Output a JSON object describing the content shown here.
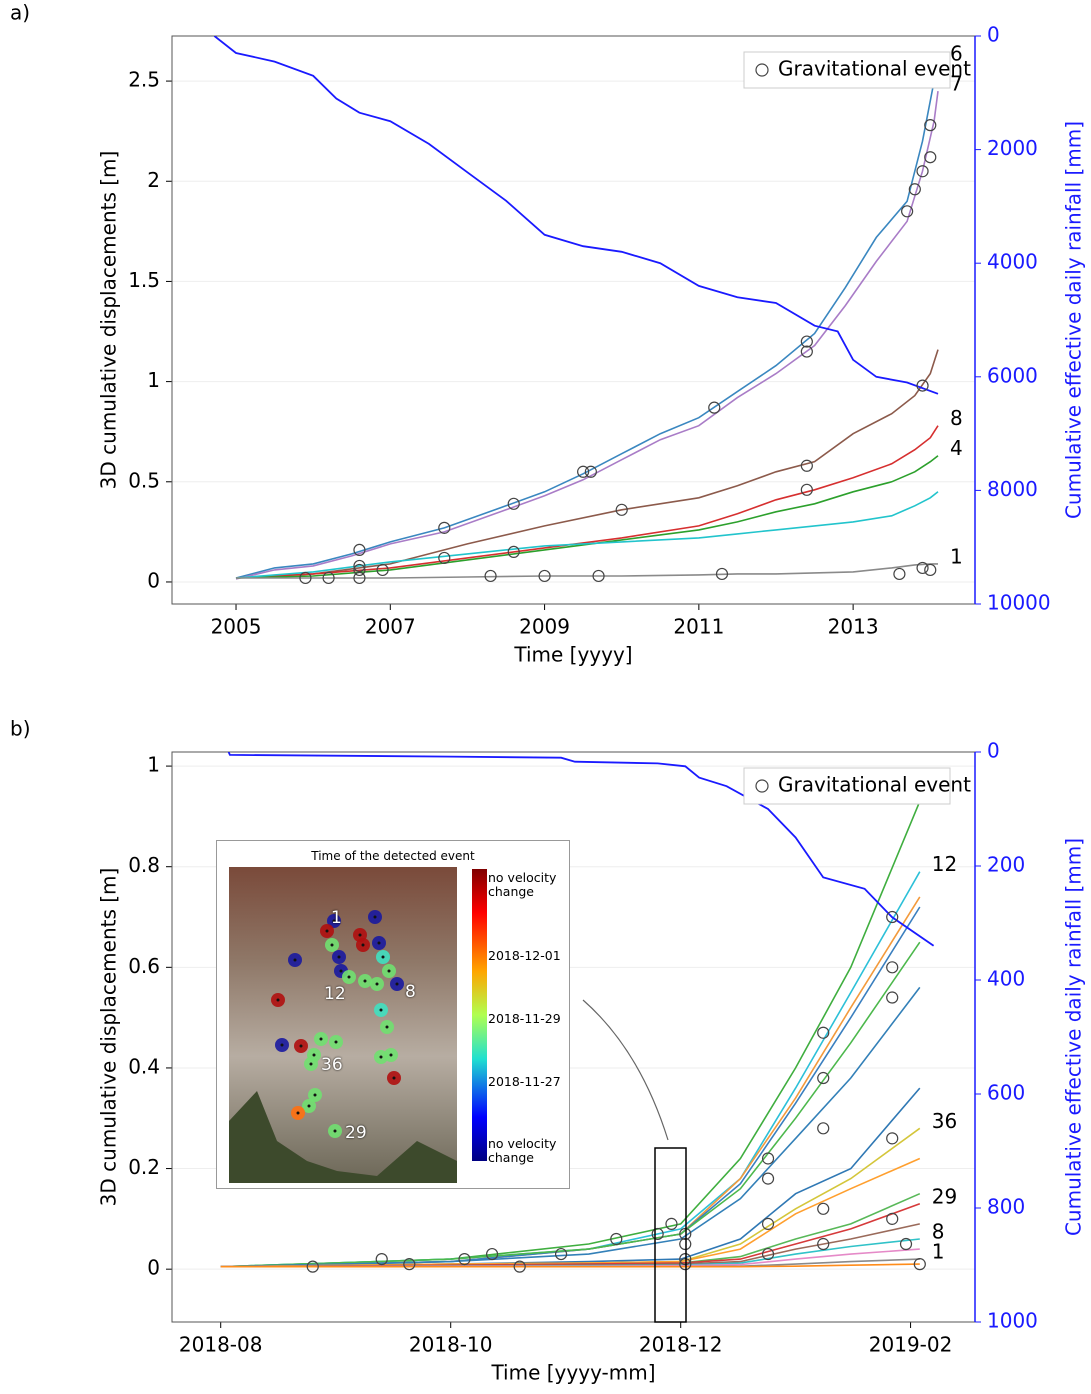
{
  "chart_data": [
    {
      "type": "line",
      "panel_label": "a)",
      "xlabel": "Time [yyyy]",
      "ylabel": "3D cumulative displacements [m]",
      "y2label": "Cumulative effective daily rainfall [mm]",
      "xlim": [
        2004.17,
        2014.58
      ],
      "xticks": [
        2005,
        2007,
        2009,
        2011,
        2013
      ],
      "ylim": [
        -0.11,
        2.725
      ],
      "yticks": [
        0,
        0.5,
        1,
        1.5,
        2,
        2.5
      ],
      "y2lim": [
        10000,
        0
      ],
      "y2ticks": [
        0,
        2000,
        4000,
        6000,
        8000,
        10000
      ],
      "grid": true,
      "legend": "upper right",
      "x": [
        2005,
        2006,
        2007,
        2008,
        2009,
        2010,
        2011,
        2011.5,
        2012,
        2012.5,
        2013,
        2013.5,
        2013.8,
        2014,
        2014.1
      ],
      "series": [
        {
          "name": "6",
          "color": "#3a87c0",
          "x": [
            2005,
            2005.5,
            2006,
            2006.5,
            2007,
            2007.7,
            2008.5,
            2009,
            2009.5,
            2010,
            2010.5,
            2011,
            2011.5,
            2012,
            2012.5,
            2012.9,
            2013.3,
            2013.7,
            2013.9,
            2014.05,
            2014.1
          ],
          "values": [
            0.02,
            0.07,
            0.09,
            0.14,
            0.2,
            0.27,
            0.38,
            0.45,
            0.54,
            0.64,
            0.74,
            0.82,
            0.95,
            1.08,
            1.24,
            1.47,
            1.72,
            1.9,
            2.2,
            2.5,
            2.6
          ]
        },
        {
          "name": "7",
          "color": "#a97cc7",
          "x": [
            2005,
            2005.5,
            2006,
            2006.5,
            2007,
            2007.7,
            2008.5,
            2009,
            2009.5,
            2010,
            2010.5,
            2011,
            2011.5,
            2012,
            2012.5,
            2012.9,
            2013.3,
            2013.7,
            2013.9,
            2014.05,
            2014.1
          ],
          "values": [
            0.015,
            0.06,
            0.08,
            0.13,
            0.19,
            0.25,
            0.36,
            0.43,
            0.51,
            0.61,
            0.71,
            0.78,
            0.92,
            1.04,
            1.18,
            1.38,
            1.6,
            1.8,
            2.05,
            2.3,
            2.45
          ]
        },
        {
          "color": "#8c5a4b",
          "values": [
            0.02,
            0.04,
            0.09,
            0.19,
            0.28,
            0.36,
            0.42,
            0.48,
            0.55,
            0.6,
            0.74,
            0.84,
            0.93,
            1.04,
            1.16
          ]
        },
        {
          "name": "8",
          "color": "#d62f2f",
          "values": [
            0.02,
            0.04,
            0.07,
            0.12,
            0.17,
            0.22,
            0.28,
            0.34,
            0.41,
            0.46,
            0.52,
            0.59,
            0.66,
            0.72,
            0.78
          ]
        },
        {
          "name": "4",
          "color": "#2ca02c",
          "values": [
            0.02,
            0.03,
            0.06,
            0.11,
            0.16,
            0.21,
            0.26,
            0.3,
            0.35,
            0.39,
            0.45,
            0.5,
            0.55,
            0.6,
            0.63
          ]
        },
        {
          "color": "#22c4cc",
          "values": [
            0.02,
            0.05,
            0.1,
            0.14,
            0.18,
            0.2,
            0.22,
            0.24,
            0.26,
            0.28,
            0.3,
            0.33,
            0.38,
            0.42,
            0.45
          ]
        },
        {
          "name": "1",
          "color": "#8a8a8a",
          "values": [
            0.02,
            0.02,
            0.02,
            0.025,
            0.03,
            0.03,
            0.035,
            0.04,
            0.04,
            0.045,
            0.05,
            0.07,
            0.085,
            0.09,
            0.09
          ]
        },
        {
          "axis": "y2",
          "color": "#1a1aff",
          "x": [
            2004.72,
            2005,
            2005.5,
            2006,
            2006.3,
            2006.6,
            2007,
            2007.5,
            2008,
            2008.5,
            2009,
            2009.5,
            2010,
            2010.5,
            2011,
            2011.5,
            2012,
            2012.5,
            2012.8,
            2013,
            2013.3,
            2013.7,
            2014.1
          ],
          "values": [
            0,
            300,
            450,
            700,
            1100,
            1350,
            1500,
            1900,
            2400,
            2900,
            3500,
            3700,
            3800,
            4000,
            4400,
            4600,
            4700,
            5100,
            5200,
            5700,
            6000,
            6100,
            6300
          ]
        },
        {
          "name": "Gravitational event",
          "marker": "circle",
          "color": "#444444",
          "x": [
            2005.9,
            2006.2,
            2006.6,
            2006.6,
            2006.6,
            2006.6,
            2006.9,
            2007.7,
            2007.7,
            2008.3,
            2008.6,
            2008.6,
            2009.0,
            2009.5,
            2009.6,
            2009.7,
            2010.0,
            2011.2,
            2011.3,
            2012.4,
            2012.4,
            2012.4,
            2012.4,
            2013.6,
            2013.7,
            2013.8,
            2013.9,
            2013.9,
            2014.0,
            2014.0,
            2013.9,
            2014.0
          ],
          "values": [
            0.02,
            0.02,
            0.02,
            0.08,
            0.06,
            0.16,
            0.06,
            0.27,
            0.12,
            0.03,
            0.39,
            0.15,
            0.03,
            0.55,
            0.55,
            0.03,
            0.36,
            0.87,
            0.04,
            1.2,
            1.15,
            0.58,
            0.46,
            0.04,
            1.85,
            1.96,
            0.98,
            2.05,
            2.28,
            2.12,
            0.07,
            0.06
          ]
        }
      ]
    },
    {
      "type": "line",
      "panel_label": "b)",
      "xlabel": "Time [yyyy-mm]",
      "ylabel": "3D cumulative displacements [m]",
      "y2label": "Cumulative effective daily rainfall [mm]",
      "xlim": [
        2018.548,
        2019.13
      ],
      "xticks": [
        {
          "value": 2018.5833,
          "label": "2018-08"
        },
        {
          "value": 2018.75,
          "label": "2018-10"
        },
        {
          "value": 2018.9167,
          "label": "2018-12"
        },
        {
          "value": 2019.0833,
          "label": "2019-02"
        }
      ],
      "ylim": [
        -0.105,
        1.028
      ],
      "yticks": [
        0,
        0.2,
        0.4,
        0.6,
        0.8,
        1
      ],
      "y2lim": [
        1000,
        0
      ],
      "y2ticks": [
        0,
        200,
        400,
        600,
        800,
        1000
      ],
      "grid": true,
      "legend": "upper right",
      "x": [
        2018.5833,
        2018.75,
        2018.85,
        2018.9167,
        2018.96,
        2019.0,
        2019.04,
        2019.09
      ],
      "series": [
        {
          "color": "#3fae3f",
          "values": [
            0.005,
            0.02,
            0.05,
            0.09,
            0.22,
            0.4,
            0.6,
            0.93
          ]
        },
        {
          "name": "12",
          "color": "#2cc0d8",
          "values": [
            0.005,
            0.02,
            0.04,
            0.08,
            0.18,
            0.36,
            0.55,
            0.79
          ]
        },
        {
          "color": "#f39a3c",
          "values": [
            0.005,
            0.015,
            0.04,
            0.07,
            0.18,
            0.34,
            0.52,
            0.74
          ]
        },
        {
          "color": "#3a7fbf",
          "values": [
            0.005,
            0.015,
            0.04,
            0.07,
            0.17,
            0.33,
            0.5,
            0.72
          ]
        },
        {
          "color": "#4cb84c",
          "values": [
            0.005,
            0.02,
            0.04,
            0.07,
            0.16,
            0.3,
            0.45,
            0.65
          ]
        },
        {
          "color": "#3380b8",
          "values": [
            0.005,
            0.015,
            0.03,
            0.06,
            0.14,
            0.26,
            0.38,
            0.56
          ]
        },
        {
          "color": "#2f78b4",
          "values": [
            0.005,
            0.01,
            0.015,
            0.02,
            0.06,
            0.15,
            0.2,
            0.36
          ]
        },
        {
          "name": "36",
          "color": "#d4c63a",
          "values": [
            0.005,
            0.01,
            0.012,
            0.015,
            0.05,
            0.12,
            0.18,
            0.28
          ]
        },
        {
          "color": "#ff9f2e",
          "values": [
            0.005,
            0.01,
            0.012,
            0.015,
            0.04,
            0.11,
            0.16,
            0.22
          ]
        },
        {
          "color": "#58b858",
          "values": [
            0.005,
            0.008,
            0.01,
            0.012,
            0.025,
            0.06,
            0.09,
            0.15
          ]
        },
        {
          "name": "29",
          "color": "#d63a3a",
          "values": [
            0.005,
            0.008,
            0.01,
            0.012,
            0.02,
            0.05,
            0.08,
            0.13
          ]
        },
        {
          "color": "#9a6a5a",
          "values": [
            0.005,
            0.007,
            0.008,
            0.01,
            0.015,
            0.04,
            0.06,
            0.09
          ]
        },
        {
          "name": "8",
          "color": "#30c2c8",
          "values": [
            0.005,
            0.006,
            0.007,
            0.008,
            0.012,
            0.03,
            0.045,
            0.06
          ]
        },
        {
          "color": "#e58ac8",
          "values": [
            0.005,
            0.006,
            0.006,
            0.007,
            0.009,
            0.02,
            0.03,
            0.04
          ]
        },
        {
          "name": "1",
          "color": "#8a8a8a",
          "values": [
            0.005,
            0.005,
            0.005,
            0.005,
            0.006,
            0.01,
            0.015,
            0.02
          ]
        },
        {
          "color": "#ff8c1a",
          "values": [
            0.005,
            0.005,
            0.005,
            0.005,
            0.005,
            0.006,
            0.008,
            0.01
          ]
        },
        {
          "axis": "y2",
          "color": "#1a1aff",
          "x": [
            2018.589,
            2018.59,
            2018.75,
            2018.83,
            2018.84,
            2018.9,
            2018.92,
            2018.93,
            2018.95,
            2018.98,
            2019.0,
            2019.02,
            2019.05,
            2019.07,
            2019.1
          ],
          "values": [
            0,
            5,
            8,
            10,
            17,
            20,
            25,
            45,
            60,
            100,
            150,
            220,
            240,
            290,
            340
          ]
        },
        {
          "name": "Gravitational event",
          "marker": "circle",
          "color": "#444444",
          "x": [
            2018.65,
            2018.7,
            2018.72,
            2018.76,
            2018.78,
            2018.8,
            2018.83,
            2018.87,
            2018.9,
            2018.91,
            2018.92,
            2018.92,
            2018.92,
            2018.92,
            2018.98,
            2018.98,
            2018.98,
            2018.98,
            2019.02,
            2019.02,
            2019.02,
            2019.02,
            2019.02,
            2019.07,
            2019.07,
            2019.07,
            2019.07,
            2019.07,
            2019.08,
            2019.09
          ],
          "values": [
            0.005,
            0.02,
            0.01,
            0.02,
            0.03,
            0.005,
            0.03,
            0.06,
            0.07,
            0.09,
            0.07,
            0.05,
            0.02,
            0.01,
            0.22,
            0.18,
            0.09,
            0.03,
            0.47,
            0.38,
            0.28,
            0.12,
            0.05,
            0.7,
            0.6,
            0.54,
            0.26,
            0.1,
            0.05,
            0.01
          ]
        }
      ],
      "inset": {
        "title": "Time of the detected event",
        "colorbar_labels": [
          "no velocity change",
          "2018-12-01",
          "2018-11-29",
          "2018-11-27",
          "no velocity change"
        ],
        "point_labels": [
          "1",
          "12",
          "8",
          "36",
          "29"
        ]
      }
    }
  ]
}
